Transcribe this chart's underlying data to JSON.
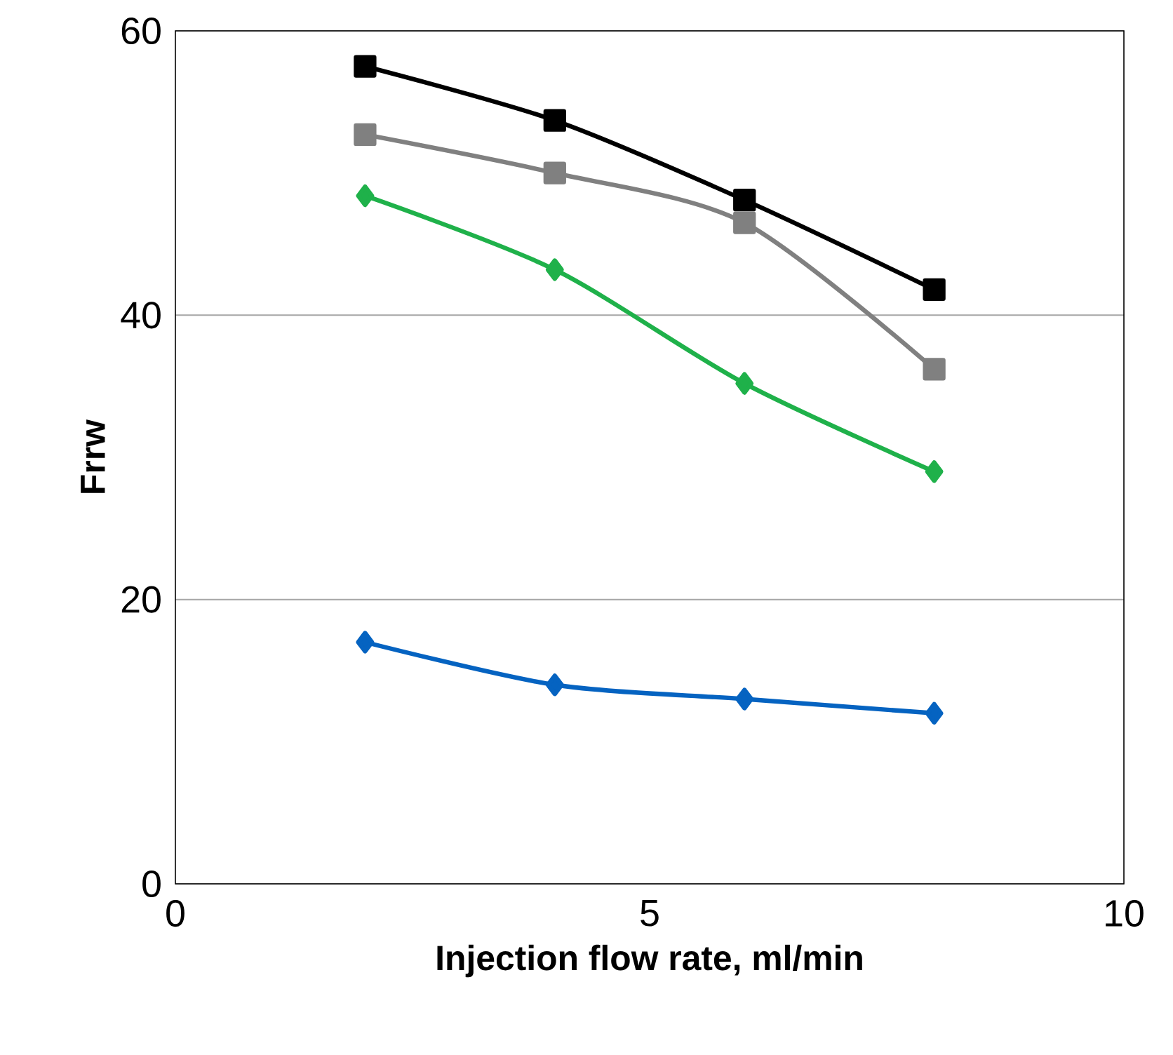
{
  "chart_data": {
    "type": "line",
    "xlabel": "Injection flow rate, ml/min",
    "ylabel": "Frrw",
    "x": [
      2,
      4,
      6,
      8
    ],
    "series": [
      {
        "color": "#000000",
        "marker": "square",
        "values": [
          57.5,
          53.7,
          48.1,
          41.8
        ]
      },
      {
        "color": "#808080",
        "marker": "square",
        "values": [
          52.7,
          50.0,
          46.5,
          36.2
        ]
      },
      {
        "color": "#1fb14a",
        "marker": "diamond",
        "values": [
          48.4,
          43.2,
          35.2,
          29.0
        ]
      },
      {
        "color": "#0563c1",
        "marker": "diamond",
        "values": [
          17.0,
          14.0,
          13.0,
          12.0
        ]
      }
    ],
    "xlim": [
      0,
      10
    ],
    "xticks": [
      0,
      5,
      10
    ],
    "ylim": [
      0,
      60
    ],
    "yticks": [
      0,
      20,
      40,
      60
    ],
    "grid": "y",
    "line_style": "solid"
  }
}
